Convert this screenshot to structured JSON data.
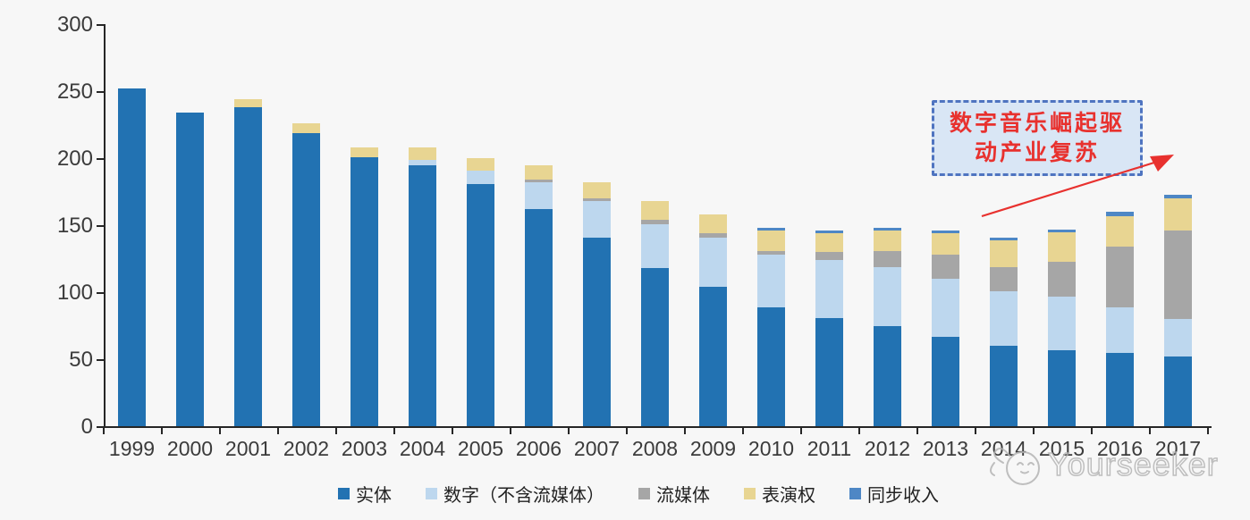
{
  "chart_data": {
    "type": "stacked-bar",
    "categories": [
      "1999",
      "2000",
      "2001",
      "2002",
      "2003",
      "2004",
      "2005",
      "2006",
      "2007",
      "2008",
      "2009",
      "2010",
      "2011",
      "2012",
      "2013",
      "2014",
      "2015",
      "2016",
      "2017"
    ],
    "series": [
      {
        "name": "实体",
        "color": "#2272B2",
        "values": [
          252,
          234,
          238,
          219,
          201,
          195,
          181,
          162,
          141,
          118,
          104,
          89,
          81,
          75,
          67,
          60,
          57,
          55,
          52
        ]
      },
      {
        "name": "数字（不含流媒体）",
        "color": "#BDD7EE",
        "values": [
          0,
          0,
          0,
          0,
          0,
          4,
          10,
          20,
          27,
          33,
          37,
          39,
          43,
          44,
          43,
          41,
          40,
          34,
          28
        ]
      },
      {
        "name": "流媒体",
        "color": "#A6A6A6",
        "values": [
          0,
          0,
          0,
          0,
          0,
          0,
          0,
          2,
          2,
          3,
          3,
          3,
          6,
          12,
          18,
          18,
          26,
          45,
          66
        ]
      },
      {
        "name": "表演权",
        "color": "#E8D592",
        "values": [
          0,
          0,
          6,
          7,
          7,
          9,
          9,
          11,
          12,
          14,
          14,
          15,
          14,
          15,
          16,
          20,
          22,
          23,
          24
        ]
      },
      {
        "name": "同步收入",
        "color": "#4E87C5",
        "values": [
          0,
          0,
          0,
          0,
          0,
          0,
          0,
          0,
          0,
          0,
          0,
          2,
          2,
          2,
          2,
          2,
          2,
          3,
          3
        ]
      }
    ],
    "ylim": [
      0,
      300
    ],
    "yticks": [
      0,
      50,
      100,
      150,
      200,
      250,
      300
    ],
    "grid": false,
    "legend_position": "bottom",
    "annotation": {
      "text": "数字音乐崛起驱动产业复苏",
      "lines": [
        "数字音乐崛起驱",
        "动产业复苏"
      ],
      "text_color": "#e8312e",
      "box_fill": "#d9e6f5",
      "box_border": "#4f74c0",
      "arrow_color": "#e8312e"
    }
  },
  "watermark": {
    "text": "Yourseeker"
  }
}
